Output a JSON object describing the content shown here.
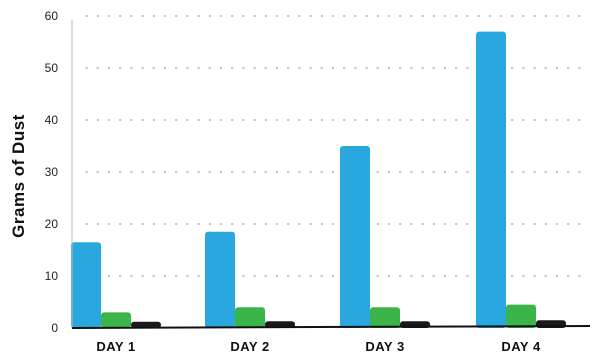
{
  "chart_data": {
    "type": "bar",
    "title": "",
    "xlabel": "",
    "ylabel": "Grams of Dust",
    "ylim": [
      0,
      60
    ],
    "yticks": [
      0,
      10,
      20,
      30,
      40,
      50,
      60
    ],
    "grid": true,
    "legend": "none",
    "categories": [
      "DAY 1",
      "DAY 2",
      "DAY 3",
      "DAY 4"
    ],
    "series": [
      {
        "values": [
          16.5,
          18.5,
          35,
          57
        ],
        "color": "#29a8e0"
      },
      {
        "values": [
          3,
          4,
          4,
          4.5
        ],
        "color": "#3bb54a"
      },
      {
        "values": [
          1.2,
          1.3,
          1.3,
          1.5
        ],
        "color": "#1a1a1a"
      }
    ]
  }
}
